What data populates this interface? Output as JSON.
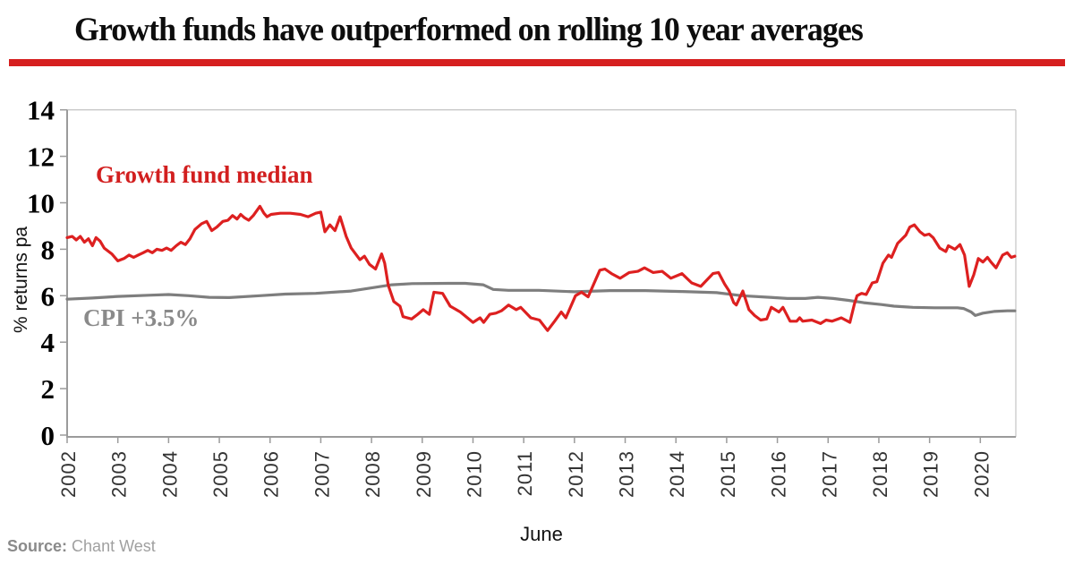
{
  "header": {
    "rule_color": "#d61f1f"
  },
  "source": {
    "label": "Source:",
    "value": "Chant West"
  },
  "chart_data": {
    "type": "line",
    "title": "Growth funds have outperformed on rolling 10 year averages",
    "xlabel": "June",
    "ylabel": "% returns pa",
    "ylim": [
      0,
      14
    ],
    "y_ticks": [
      0,
      2,
      4,
      6,
      8,
      10,
      12,
      14
    ],
    "x_ticks": [
      2002,
      2003,
      2004,
      2005,
      2006,
      2007,
      2008,
      2009,
      2010,
      2011,
      2012,
      2013,
      2014,
      2015,
      2016,
      2017,
      2018,
      2019,
      2020
    ],
    "xlim": [
      2002,
      2020.7
    ],
    "x_note": "x values are decimal years anchored to June (x=2002 means June 2002); grid off; legend drawn as inline text labels",
    "series": [
      {
        "name": "Growth fund median",
        "color": "#dd2020",
        "points": [
          [
            2002.0,
            8.5
          ],
          [
            2002.1,
            8.55
          ],
          [
            2002.18,
            8.4
          ],
          [
            2002.26,
            8.55
          ],
          [
            2002.34,
            8.3
          ],
          [
            2002.42,
            8.45
          ],
          [
            2002.5,
            8.15
          ],
          [
            2002.57,
            8.5
          ],
          [
            2002.65,
            8.35
          ],
          [
            2002.73,
            8.05
          ],
          [
            2002.88,
            7.8
          ],
          [
            2003.0,
            7.5
          ],
          [
            2003.12,
            7.6
          ],
          [
            2003.22,
            7.75
          ],
          [
            2003.31,
            7.65
          ],
          [
            2003.4,
            7.75
          ],
          [
            2003.5,
            7.85
          ],
          [
            2003.59,
            7.95
          ],
          [
            2003.68,
            7.85
          ],
          [
            2003.77,
            8.0
          ],
          [
            2003.87,
            7.95
          ],
          [
            2003.96,
            8.05
          ],
          [
            2004.05,
            7.95
          ],
          [
            2004.15,
            8.15
          ],
          [
            2004.24,
            8.3
          ],
          [
            2004.33,
            8.2
          ],
          [
            2004.42,
            8.45
          ],
          [
            2004.52,
            8.85
          ],
          [
            2004.65,
            9.1
          ],
          [
            2004.75,
            9.2
          ],
          [
            2004.85,
            8.8
          ],
          [
            2004.95,
            8.95
          ],
          [
            2005.07,
            9.2
          ],
          [
            2005.17,
            9.25
          ],
          [
            2005.26,
            9.45
          ],
          [
            2005.35,
            9.3
          ],
          [
            2005.42,
            9.5
          ],
          [
            2005.5,
            9.35
          ],
          [
            2005.58,
            9.25
          ],
          [
            2005.67,
            9.45
          ],
          [
            2005.8,
            9.85
          ],
          [
            2005.88,
            9.55
          ],
          [
            2005.94,
            9.4
          ],
          [
            2006.02,
            9.5
          ],
          [
            2006.2,
            9.55
          ],
          [
            2006.4,
            9.55
          ],
          [
            2006.6,
            9.5
          ],
          [
            2006.75,
            9.4
          ],
          [
            2006.9,
            9.55
          ],
          [
            2007.0,
            9.6
          ],
          [
            2007.08,
            8.75
          ],
          [
            2007.18,
            9.05
          ],
          [
            2007.28,
            8.8
          ],
          [
            2007.38,
            9.4
          ],
          [
            2007.5,
            8.55
          ],
          [
            2007.6,
            8.05
          ],
          [
            2007.77,
            7.55
          ],
          [
            2007.86,
            7.7
          ],
          [
            2007.96,
            7.35
          ],
          [
            2008.08,
            7.15
          ],
          [
            2008.2,
            7.8
          ],
          [
            2008.26,
            7.4
          ],
          [
            2008.33,
            6.45
          ],
          [
            2008.44,
            5.75
          ],
          [
            2008.56,
            5.55
          ],
          [
            2008.62,
            5.1
          ],
          [
            2008.79,
            5.0
          ],
          [
            2008.91,
            5.2
          ],
          [
            2009.02,
            5.4
          ],
          [
            2009.14,
            5.2
          ],
          [
            2009.23,
            6.15
          ],
          [
            2009.4,
            6.1
          ],
          [
            2009.55,
            5.55
          ],
          [
            2009.75,
            5.3
          ],
          [
            2010.0,
            4.85
          ],
          [
            2010.14,
            5.05
          ],
          [
            2010.21,
            4.85
          ],
          [
            2010.33,
            5.2
          ],
          [
            2010.45,
            5.25
          ],
          [
            2010.56,
            5.35
          ],
          [
            2010.7,
            5.6
          ],
          [
            2010.85,
            5.4
          ],
          [
            2010.94,
            5.5
          ],
          [
            2011.14,
            5.05
          ],
          [
            2011.31,
            4.95
          ],
          [
            2011.47,
            4.5
          ],
          [
            2011.61,
            4.9
          ],
          [
            2011.74,
            5.3
          ],
          [
            2011.83,
            5.05
          ],
          [
            2012.02,
            6.0
          ],
          [
            2012.14,
            6.15
          ],
          [
            2012.27,
            5.95
          ],
          [
            2012.5,
            7.1
          ],
          [
            2012.6,
            7.15
          ],
          [
            2012.73,
            6.95
          ],
          [
            2012.9,
            6.75
          ],
          [
            2013.08,
            7.0
          ],
          [
            2013.25,
            7.05
          ],
          [
            2013.38,
            7.2
          ],
          [
            2013.55,
            7.0
          ],
          [
            2013.73,
            7.05
          ],
          [
            2013.9,
            6.75
          ],
          [
            2014.12,
            6.95
          ],
          [
            2014.31,
            6.55
          ],
          [
            2014.49,
            6.4
          ],
          [
            2014.73,
            6.95
          ],
          [
            2014.84,
            7.0
          ],
          [
            2014.96,
            6.5
          ],
          [
            2015.05,
            6.2
          ],
          [
            2015.14,
            5.7
          ],
          [
            2015.19,
            5.6
          ],
          [
            2015.32,
            6.2
          ],
          [
            2015.44,
            5.4
          ],
          [
            2015.55,
            5.15
          ],
          [
            2015.67,
            4.95
          ],
          [
            2015.79,
            5.0
          ],
          [
            2015.88,
            5.5
          ],
          [
            2016.03,
            5.3
          ],
          [
            2016.11,
            5.5
          ],
          [
            2016.25,
            4.9
          ],
          [
            2016.38,
            4.9
          ],
          [
            2016.44,
            5.05
          ],
          [
            2016.5,
            4.9
          ],
          [
            2016.68,
            4.95
          ],
          [
            2016.85,
            4.8
          ],
          [
            2016.96,
            4.95
          ],
          [
            2017.08,
            4.9
          ],
          [
            2017.26,
            5.05
          ],
          [
            2017.43,
            4.85
          ],
          [
            2017.52,
            5.65
          ],
          [
            2017.57,
            6.0
          ],
          [
            2017.66,
            6.1
          ],
          [
            2017.75,
            6.05
          ],
          [
            2017.87,
            6.55
          ],
          [
            2017.96,
            6.6
          ],
          [
            2018.08,
            7.4
          ],
          [
            2018.19,
            7.75
          ],
          [
            2018.25,
            7.65
          ],
          [
            2018.37,
            8.25
          ],
          [
            2018.53,
            8.6
          ],
          [
            2018.61,
            8.95
          ],
          [
            2018.7,
            9.05
          ],
          [
            2018.81,
            8.75
          ],
          [
            2018.9,
            8.6
          ],
          [
            2018.99,
            8.65
          ],
          [
            2019.07,
            8.5
          ],
          [
            2019.2,
            8.05
          ],
          [
            2019.32,
            7.9
          ],
          [
            2019.37,
            8.15
          ],
          [
            2019.5,
            8.0
          ],
          [
            2019.6,
            8.2
          ],
          [
            2019.69,
            7.75
          ],
          [
            2019.78,
            6.4
          ],
          [
            2019.87,
            6.9
          ],
          [
            2019.96,
            7.6
          ],
          [
            2020.05,
            7.45
          ],
          [
            2020.14,
            7.65
          ],
          [
            2020.21,
            7.45
          ],
          [
            2020.31,
            7.2
          ],
          [
            2020.44,
            7.75
          ],
          [
            2020.53,
            7.85
          ],
          [
            2020.61,
            7.65
          ],
          [
            2020.68,
            7.7
          ]
        ]
      },
      {
        "name": "CPI +3.5%",
        "color": "#7e7e7e",
        "points": [
          [
            2002.0,
            5.85
          ],
          [
            2002.5,
            5.9
          ],
          [
            2003.0,
            5.97
          ],
          [
            2003.6,
            6.02
          ],
          [
            2004.0,
            6.05
          ],
          [
            2004.4,
            6.0
          ],
          [
            2004.8,
            5.93
          ],
          [
            2005.2,
            5.92
          ],
          [
            2005.8,
            6.0
          ],
          [
            2006.3,
            6.07
          ],
          [
            2006.9,
            6.1
          ],
          [
            2007.6,
            6.2
          ],
          [
            2008.1,
            6.37
          ],
          [
            2008.4,
            6.47
          ],
          [
            2008.8,
            6.52
          ],
          [
            2009.5,
            6.53
          ],
          [
            2009.85,
            6.53
          ],
          [
            2010.2,
            6.47
          ],
          [
            2010.4,
            6.27
          ],
          [
            2010.7,
            6.23
          ],
          [
            2011.3,
            6.23
          ],
          [
            2012.0,
            6.17
          ],
          [
            2012.7,
            6.22
          ],
          [
            2013.4,
            6.22
          ],
          [
            2014.1,
            6.18
          ],
          [
            2014.8,
            6.13
          ],
          [
            2015.3,
            6.0
          ],
          [
            2015.85,
            5.93
          ],
          [
            2016.2,
            5.88
          ],
          [
            2016.55,
            5.88
          ],
          [
            2016.8,
            5.93
          ],
          [
            2017.1,
            5.88
          ],
          [
            2017.4,
            5.8
          ],
          [
            2017.7,
            5.7
          ],
          [
            2018.05,
            5.62
          ],
          [
            2018.3,
            5.55
          ],
          [
            2018.67,
            5.5
          ],
          [
            2019.1,
            5.48
          ],
          [
            2019.55,
            5.48
          ],
          [
            2019.67,
            5.45
          ],
          [
            2019.82,
            5.3
          ],
          [
            2019.9,
            5.15
          ],
          [
            2020.05,
            5.25
          ],
          [
            2020.27,
            5.32
          ],
          [
            2020.53,
            5.35
          ],
          [
            2020.68,
            5.35
          ]
        ]
      }
    ]
  }
}
